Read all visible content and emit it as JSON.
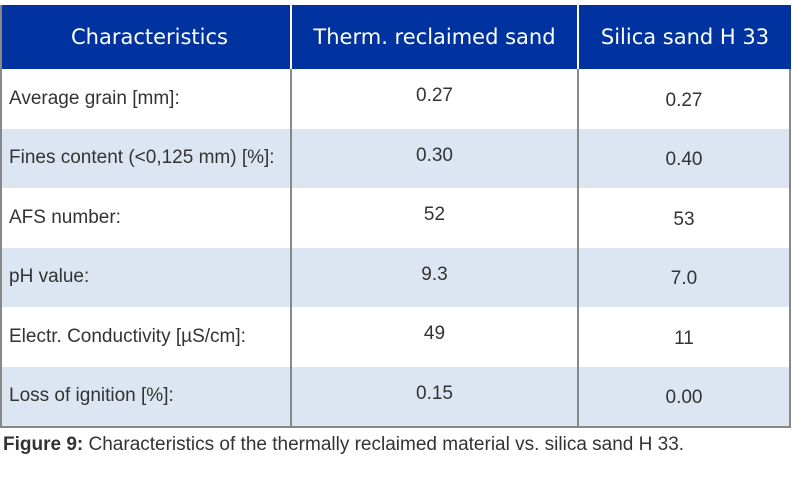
{
  "table": {
    "headers": [
      "Characteristics",
      "Therm. reclaimed sand",
      "Silica sand H 33"
    ],
    "rows": [
      {
        "label": "Average grain [mm]:",
        "reclaimed": "0.27",
        "silica": "0.27"
      },
      {
        "label": "Fines content (<0,125 mm) [%]:",
        "reclaimed": "0.30",
        "silica": "0.40"
      },
      {
        "label": "AFS number:",
        "reclaimed": "52",
        "silica": "53"
      },
      {
        "label": "pH value:",
        "reclaimed": "9.3",
        "silica": "7.0"
      },
      {
        "label": "Electr. Conductivity [µS/cm]:",
        "reclaimed": "49",
        "silica": "11"
      },
      {
        "label": "Loss of ignition [%]:",
        "reclaimed": "0.15",
        "silica": "0.00"
      }
    ]
  },
  "caption": {
    "label": "Figure 9:",
    "text": " Characteristics of the thermally reclaimed material vs. silica sand H 33."
  }
}
